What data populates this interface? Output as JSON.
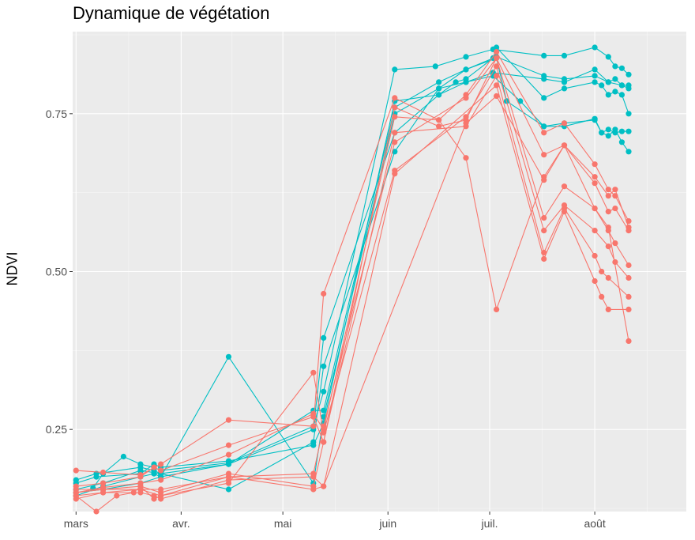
{
  "chart_data": {
    "type": "line",
    "title": "Dynamique de végétation",
    "xlabel": "",
    "ylabel": "NDVI",
    "x_axis_type": "date",
    "xlim": [
      "2019-02-28",
      "2019-08-28"
    ],
    "ylim": [
      0.12,
      0.88
    ],
    "x_ticks": [
      {
        "date": "2019-03-01",
        "label": "mars"
      },
      {
        "date": "2019-04-01",
        "label": "avr."
      },
      {
        "date": "2019-05-01",
        "label": "mai"
      },
      {
        "date": "2019-06-01",
        "label": "juin"
      },
      {
        "date": "2019-07-01",
        "label": "juil."
      },
      {
        "date": "2019-08-01",
        "label": "août"
      }
    ],
    "y_ticks": [
      0.25,
      0.5,
      0.75
    ],
    "y_tick_labels": [
      "0.25",
      "0.50",
      "0.75"
    ],
    "grid": true,
    "legend": "none",
    "colors": {
      "red": "#F8766D",
      "teal": "#00BFC4",
      "panel": "#EBEBEB",
      "grid": "#FFFFFF"
    },
    "series": [
      {
        "color": "#00BFC4",
        "points": [
          [
            "2019-03-06",
            0.157
          ],
          [
            "2019-03-09",
            0.18
          ],
          [
            "2019-03-15",
            0.207
          ],
          [
            "2019-03-20",
            0.195
          ],
          [
            "2019-03-24",
            0.19
          ],
          [
            "2019-03-26",
            0.185
          ],
          [
            "2019-04-15",
            0.197
          ],
          [
            "2019-05-10",
            0.255
          ],
          [
            "2019-05-13",
            0.31
          ],
          [
            "2019-06-03",
            0.82
          ],
          [
            "2019-06-15",
            0.825
          ],
          [
            "2019-06-24",
            0.84
          ],
          [
            "2019-07-02",
            0.852
          ],
          [
            "2019-07-17",
            0.842
          ],
          [
            "2019-07-23",
            0.842
          ],
          [
            "2019-08-01",
            0.855
          ],
          [
            "2019-08-05",
            0.84
          ],
          [
            "2019-08-07",
            0.825
          ],
          [
            "2019-08-09",
            0.822
          ],
          [
            "2019-08-11",
            0.812
          ]
        ]
      },
      {
        "color": "#00BFC4",
        "points": [
          [
            "2019-03-01",
            0.15
          ],
          [
            "2019-03-09",
            0.155
          ],
          [
            "2019-03-20",
            0.165
          ],
          [
            "2019-03-26",
            0.175
          ],
          [
            "2019-04-15",
            0.365
          ],
          [
            "2019-05-10",
            0.165
          ],
          [
            "2019-05-13",
            0.27
          ],
          [
            "2019-06-03",
            0.75
          ],
          [
            "2019-06-16",
            0.79
          ],
          [
            "2019-06-24",
            0.8
          ],
          [
            "2019-07-02",
            0.815
          ],
          [
            "2019-07-17",
            0.805
          ],
          [
            "2019-07-23",
            0.8
          ],
          [
            "2019-08-01",
            0.82
          ],
          [
            "2019-08-05",
            0.8
          ],
          [
            "2019-08-09",
            0.795
          ],
          [
            "2019-08-11",
            0.79
          ]
        ]
      },
      {
        "color": "#00BFC4",
        "points": [
          [
            "2019-03-01",
            0.165
          ],
          [
            "2019-03-07",
            0.175
          ],
          [
            "2019-03-20",
            0.18
          ],
          [
            "2019-03-24",
            0.195
          ],
          [
            "2019-03-26",
            0.19
          ],
          [
            "2019-04-15",
            0.2
          ],
          [
            "2019-05-10",
            0.225
          ],
          [
            "2019-05-13",
            0.26
          ],
          [
            "2019-06-03",
            0.77
          ],
          [
            "2019-06-16",
            0.78
          ],
          [
            "2019-06-24",
            0.8
          ],
          [
            "2019-07-02",
            0.81
          ],
          [
            "2019-07-10",
            0.77
          ],
          [
            "2019-07-17",
            0.73
          ],
          [
            "2019-07-23",
            0.735
          ],
          [
            "2019-08-01",
            0.74
          ],
          [
            "2019-08-03",
            0.72
          ],
          [
            "2019-08-05",
            0.715
          ],
          [
            "2019-08-07",
            0.725
          ],
          [
            "2019-08-09",
            0.705
          ],
          [
            "2019-08-11",
            0.69
          ]
        ]
      },
      {
        "color": "#00BFC4",
        "points": [
          [
            "2019-03-01",
            0.145
          ],
          [
            "2019-03-09",
            0.16
          ],
          [
            "2019-03-20",
            0.175
          ],
          [
            "2019-03-24",
            0.18
          ],
          [
            "2019-03-26",
            0.175
          ],
          [
            "2019-04-15",
            0.195
          ],
          [
            "2019-05-10",
            0.25
          ],
          [
            "2019-05-13",
            0.395
          ],
          [
            "2019-06-03",
            0.72
          ],
          [
            "2019-06-16",
            0.78
          ],
          [
            "2019-06-21",
            0.8
          ],
          [
            "2019-06-24",
            0.805
          ],
          [
            "2019-07-02",
            0.838
          ],
          [
            "2019-07-03",
            0.855
          ],
          [
            "2019-07-17",
            0.775
          ],
          [
            "2019-07-23",
            0.79
          ],
          [
            "2019-08-01",
            0.8
          ],
          [
            "2019-08-03",
            0.795
          ],
          [
            "2019-08-05",
            0.78
          ],
          [
            "2019-08-07",
            0.785
          ],
          [
            "2019-08-09",
            0.78
          ],
          [
            "2019-08-11",
            0.75
          ]
        ]
      },
      {
        "color": "#00BFC4",
        "points": [
          [
            "2019-03-01",
            0.155
          ],
          [
            "2019-03-09",
            0.165
          ],
          [
            "2019-03-20",
            0.185
          ],
          [
            "2019-03-26",
            0.18
          ],
          [
            "2019-04-15",
            0.155
          ],
          [
            "2019-05-10",
            0.23
          ],
          [
            "2019-05-13",
            0.35
          ],
          [
            "2019-06-03",
            0.69
          ],
          [
            "2019-06-16",
            0.79
          ],
          [
            "2019-06-24",
            0.82
          ],
          [
            "2019-07-03",
            0.838
          ],
          [
            "2019-07-06",
            0.77
          ],
          [
            "2019-07-17",
            0.73
          ],
          [
            "2019-07-23",
            0.73
          ],
          [
            "2019-08-01",
            0.742
          ],
          [
            "2019-08-03",
            0.72
          ],
          [
            "2019-08-05",
            0.725
          ],
          [
            "2019-08-07",
            0.72
          ],
          [
            "2019-08-09",
            0.722
          ],
          [
            "2019-08-11",
            0.722
          ]
        ]
      },
      {
        "color": "#00BFC4",
        "points": [
          [
            "2019-03-01",
            0.17
          ],
          [
            "2019-03-07",
            0.18
          ],
          [
            "2019-03-20",
            0.19
          ],
          [
            "2019-03-24",
            0.185
          ],
          [
            "2019-03-26",
            0.18
          ],
          [
            "2019-04-15",
            0.195
          ],
          [
            "2019-05-10",
            0.28
          ],
          [
            "2019-05-13",
            0.28
          ],
          [
            "2019-06-03",
            0.76
          ],
          [
            "2019-06-16",
            0.8
          ],
          [
            "2019-06-24",
            0.82
          ],
          [
            "2019-07-03",
            0.84
          ],
          [
            "2019-07-17",
            0.81
          ],
          [
            "2019-07-23",
            0.805
          ],
          [
            "2019-08-01",
            0.81
          ],
          [
            "2019-08-05",
            0.8
          ],
          [
            "2019-08-07",
            0.805
          ],
          [
            "2019-08-09",
            0.795
          ],
          [
            "2019-08-11",
            0.795
          ]
        ]
      },
      {
        "color": "#F8766D",
        "points": [
          [
            "2019-03-01",
            0.185
          ],
          [
            "2019-03-09",
            0.182
          ],
          [
            "2019-03-20",
            0.178
          ],
          [
            "2019-03-26",
            0.195
          ],
          [
            "2019-04-15",
            0.265
          ],
          [
            "2019-05-10",
            0.255
          ],
          [
            "2019-05-13",
            0.465
          ],
          [
            "2019-06-03",
            0.775
          ],
          [
            "2019-06-16",
            0.74
          ],
          [
            "2019-06-24",
            0.78
          ],
          [
            "2019-07-03",
            0.848
          ],
          [
            "2019-07-17",
            0.72
          ],
          [
            "2019-07-23",
            0.735
          ],
          [
            "2019-08-01",
            0.67
          ],
          [
            "2019-08-05",
            0.63
          ],
          [
            "2019-08-07",
            0.62
          ],
          [
            "2019-08-11",
            0.58
          ]
        ]
      },
      {
        "color": "#F8766D",
        "points": [
          [
            "2019-03-01",
            0.16
          ],
          [
            "2019-03-09",
            0.165
          ],
          [
            "2019-03-20",
            0.175
          ],
          [
            "2019-03-24",
            0.19
          ],
          [
            "2019-03-26",
            0.185
          ],
          [
            "2019-04-15",
            0.225
          ],
          [
            "2019-05-10",
            0.27
          ],
          [
            "2019-05-13",
            0.23
          ],
          [
            "2019-06-03",
            0.76
          ],
          [
            "2019-06-16",
            0.73
          ],
          [
            "2019-06-24",
            0.74
          ],
          [
            "2019-07-03",
            0.838
          ],
          [
            "2019-07-17",
            0.685
          ],
          [
            "2019-07-23",
            0.7
          ],
          [
            "2019-08-01",
            0.65
          ],
          [
            "2019-08-05",
            0.62
          ],
          [
            "2019-08-07",
            0.63
          ],
          [
            "2019-08-11",
            0.57
          ]
        ]
      },
      {
        "color": "#F8766D",
        "points": [
          [
            "2019-03-01",
            0.15
          ],
          [
            "2019-03-09",
            0.158
          ],
          [
            "2019-03-20",
            0.165
          ],
          [
            "2019-03-26",
            0.17
          ],
          [
            "2019-04-15",
            0.21
          ],
          [
            "2019-05-10",
            0.275
          ],
          [
            "2019-05-13",
            0.25
          ],
          [
            "2019-06-03",
            0.745
          ],
          [
            "2019-06-16",
            0.74
          ],
          [
            "2019-06-24",
            0.68
          ],
          [
            "2019-07-03",
            0.44
          ],
          [
            "2019-07-17",
            0.65
          ],
          [
            "2019-07-23",
            0.7
          ],
          [
            "2019-08-01",
            0.64
          ],
          [
            "2019-08-05",
            0.595
          ],
          [
            "2019-08-07",
            0.6
          ],
          [
            "2019-08-11",
            0.565
          ]
        ]
      },
      {
        "color": "#F8766D",
        "points": [
          [
            "2019-03-01",
            0.155
          ],
          [
            "2019-03-09",
            0.155
          ],
          [
            "2019-03-20",
            0.155
          ],
          [
            "2019-03-26",
            0.155
          ],
          [
            "2019-04-15",
            0.175
          ],
          [
            "2019-05-10",
            0.18
          ],
          [
            "2019-05-13",
            0.255
          ],
          [
            "2019-06-03",
            0.705
          ],
          [
            "2019-06-24",
            0.775
          ],
          [
            "2019-07-03",
            0.838
          ],
          [
            "2019-07-17",
            0.585
          ],
          [
            "2019-07-23",
            0.635
          ],
          [
            "2019-08-01",
            0.6
          ],
          [
            "2019-08-05",
            0.565
          ],
          [
            "2019-08-07",
            0.545
          ],
          [
            "2019-08-11",
            0.51
          ]
        ]
      },
      {
        "color": "#F8766D",
        "points": [
          [
            "2019-03-01",
            0.145
          ],
          [
            "2019-03-07",
            0.12
          ],
          [
            "2019-03-13",
            0.145
          ],
          [
            "2019-03-18",
            0.15
          ],
          [
            "2019-03-20",
            0.16
          ],
          [
            "2019-03-24",
            0.14
          ],
          [
            "2019-03-26",
            0.145
          ],
          [
            "2019-04-15",
            0.165
          ],
          [
            "2019-05-10",
            0.34
          ],
          [
            "2019-05-13",
            0.245
          ],
          [
            "2019-06-03",
            0.66
          ],
          [
            "2019-06-24",
            0.745
          ],
          [
            "2019-07-03",
            0.825
          ],
          [
            "2019-07-17",
            0.565
          ],
          [
            "2019-07-23",
            0.605
          ],
          [
            "2019-08-01",
            0.565
          ],
          [
            "2019-08-05",
            0.54
          ],
          [
            "2019-08-07",
            0.515
          ],
          [
            "2019-08-11",
            0.49
          ]
        ]
      },
      {
        "color": "#F8766D",
        "points": [
          [
            "2019-03-01",
            0.15
          ],
          [
            "2019-03-09",
            0.155
          ],
          [
            "2019-03-20",
            0.16
          ],
          [
            "2019-03-26",
            0.15
          ],
          [
            "2019-04-15",
            0.18
          ],
          [
            "2019-05-10",
            0.16
          ],
          [
            "2019-05-13",
            0.23
          ],
          [
            "2019-06-03",
            0.72
          ],
          [
            "2019-06-24",
            0.73
          ],
          [
            "2019-07-03",
            0.81
          ],
          [
            "2019-07-17",
            0.53
          ],
          [
            "2019-07-23",
            0.6
          ],
          [
            "2019-08-01",
            0.525
          ],
          [
            "2019-08-03",
            0.5
          ],
          [
            "2019-08-05",
            0.49
          ],
          [
            "2019-08-11",
            0.46
          ]
        ]
      },
      {
        "color": "#F8766D",
        "points": [
          [
            "2019-03-01",
            0.145
          ],
          [
            "2019-03-09",
            0.15
          ],
          [
            "2019-03-20",
            0.155
          ],
          [
            "2019-03-26",
            0.145
          ],
          [
            "2019-04-15",
            0.175
          ],
          [
            "2019-05-10",
            0.155
          ],
          [
            "2019-05-13",
            0.16
          ],
          [
            "2019-06-03",
            0.655
          ],
          [
            "2019-07-03",
            0.795
          ],
          [
            "2019-07-17",
            0.52
          ],
          [
            "2019-07-23",
            0.595
          ],
          [
            "2019-08-01",
            0.485
          ],
          [
            "2019-08-03",
            0.46
          ],
          [
            "2019-08-05",
            0.44
          ],
          [
            "2019-08-11",
            0.44
          ]
        ]
      },
      {
        "color": "#F8766D",
        "points": [
          [
            "2019-03-01",
            0.14
          ],
          [
            "2019-03-09",
            0.15
          ],
          [
            "2019-03-20",
            0.15
          ],
          [
            "2019-03-24",
            0.145
          ],
          [
            "2019-03-26",
            0.14
          ],
          [
            "2019-04-15",
            0.17
          ],
          [
            "2019-05-10",
            0.175
          ],
          [
            "2019-05-13",
            0.16
          ],
          [
            "2019-06-24",
            0.735
          ],
          [
            "2019-07-03",
            0.778
          ],
          [
            "2019-07-17",
            0.645
          ],
          [
            "2019-07-23",
            0.7
          ],
          [
            "2019-08-01",
            0.6
          ],
          [
            "2019-08-05",
            0.57
          ],
          [
            "2019-08-11",
            0.39
          ]
        ]
      }
    ]
  }
}
